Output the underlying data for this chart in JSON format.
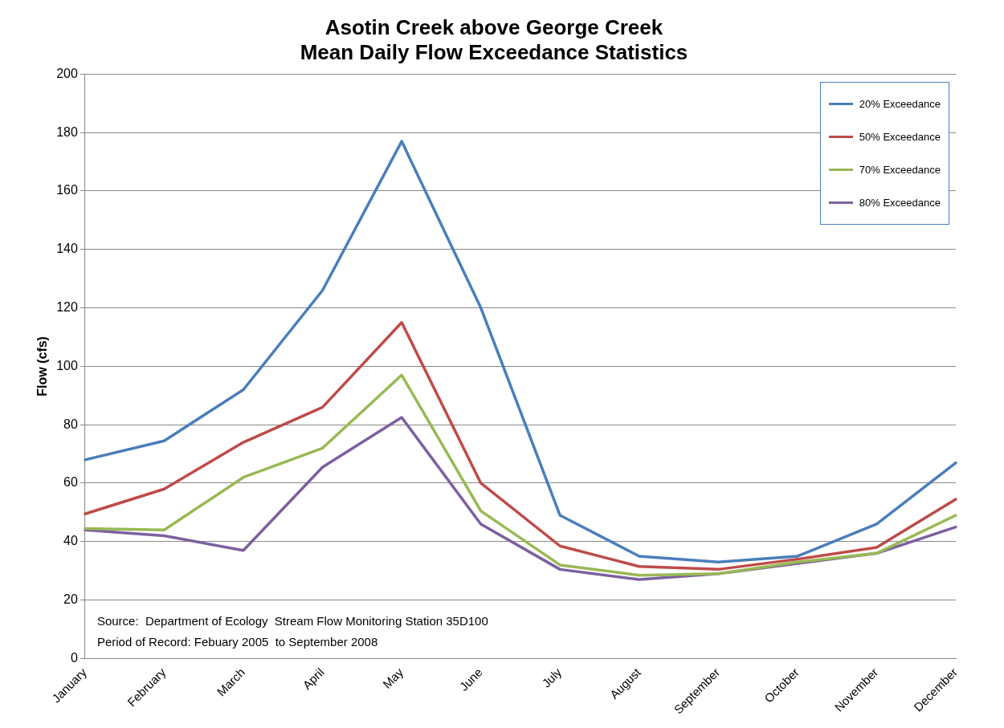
{
  "chart_data": {
    "type": "line",
    "title": "Asotin Creek above George Creek\nMean Daily Flow Exceedance Statistics",
    "ylabel": "Flow (cfs)",
    "categories": [
      "January",
      "February",
      "March",
      "April",
      "May",
      "June",
      "July",
      "August",
      "September",
      "October",
      "November",
      "December"
    ],
    "series": [
      {
        "name": "20% Exceedance",
        "color": "#4a7ebb",
        "values": [
          68,
          74.5,
          92,
          126,
          177,
          120,
          49,
          35,
          33,
          35,
          46,
          67
        ]
      },
      {
        "name": "50% Exceedance",
        "color": "#be4b48",
        "values": [
          49.5,
          58,
          74,
          86,
          115,
          60,
          38.5,
          31.5,
          30.5,
          34,
          38,
          54.5
        ]
      },
      {
        "name": "70% Exceedance",
        "color": "#98b954",
        "values": [
          44.5,
          44,
          62,
          72,
          97,
          50.5,
          32,
          28.5,
          29,
          33,
          36,
          49
        ]
      },
      {
        "name": "80% Exceedance",
        "color": "#7d60a0",
        "values": [
          44,
          42,
          37,
          65.5,
          82.5,
          46,
          30.5,
          27,
          29,
          32.5,
          36,
          45
        ]
      }
    ],
    "ylim": [
      0,
      200
    ],
    "yticks": [
      0,
      20,
      40,
      60,
      80,
      100,
      120,
      140,
      160,
      180,
      200
    ],
    "grid": "y",
    "legend": "top right",
    "marker": "none",
    "line_style": "solid",
    "annotations": [
      "Source:  Department of Ecology  Stream Flow Monitoring Station 35D100",
      "Period of Record: Febuary 2005  to September 2008"
    ]
  }
}
